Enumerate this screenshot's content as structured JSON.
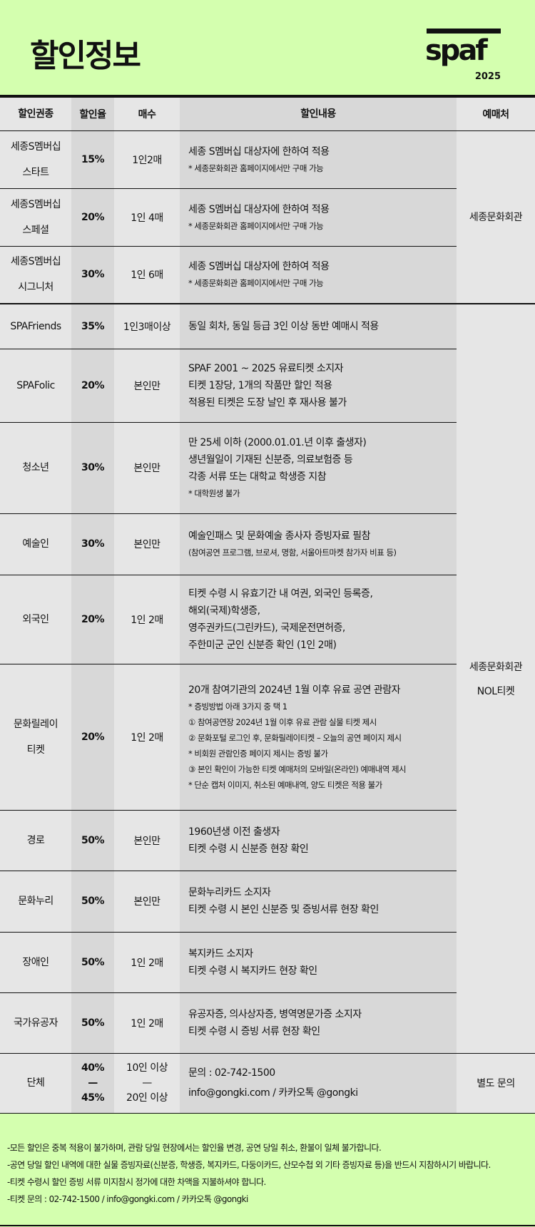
{
  "header": {
    "title": "할인정보",
    "logo_text": "spaf",
    "logo_year": "2025"
  },
  "colors": {
    "background": "#d4ffaf",
    "cell_light": "#e6e6e6",
    "cell_dark": "#d8d8d8",
    "border": "#111111"
  },
  "columns": [
    "할인권종",
    "할인율",
    "매수",
    "할인내용",
    "예매처"
  ],
  "section1_vendor": "세종문화회관",
  "section1": [
    {
      "type": [
        "세종S멤버십",
        "스타트"
      ],
      "rate": "15%",
      "qty": "1인2매",
      "lines": [
        "세종 S멤버십 대상자에 한하여 적용"
      ],
      "notes": [
        "* 세종문화회관 홈페이지에서만 구매 가능"
      ]
    },
    {
      "type": [
        "세종S멤버십",
        "스페셜"
      ],
      "rate": "20%",
      "qty": "1인 4매",
      "lines": [
        "세종 S멤버십 대상자에 한하여 적용"
      ],
      "notes": [
        "* 세종문화회관 홈페이지에서만 구매 가능"
      ]
    },
    {
      "type": [
        "세종S멤버십",
        "시그니처"
      ],
      "rate": "30%",
      "qty": "1인 6매",
      "lines": [
        "세종 S멤버십 대상자에 한하여 적용"
      ],
      "notes": [
        "* 세종문화회관 홈페이지에서만 구매 가능"
      ]
    }
  ],
  "section2_vendor": [
    "세종문화회관",
    "NOL티켓"
  ],
  "section2": [
    {
      "type": [
        "SPAFriends"
      ],
      "rate": "35%",
      "qty": "1인3매이상",
      "lines": [
        "동일 회차, 동일 등급 3인 이상 동반 예매시 적용"
      ],
      "notes": []
    },
    {
      "type": [
        "SPAFolic"
      ],
      "rate": "20%",
      "qty": "본인만",
      "lines": [
        "SPAF 2001 ~ 2025 유료티켓 소지자",
        "티켓 1장당, 1개의 작품만 할인 적용",
        "적용된 티켓은 도장 날인 후 재사용 불가"
      ],
      "notes": []
    },
    {
      "type": [
        "청소년"
      ],
      "rate": "30%",
      "qty": "본인만",
      "lines": [
        "만 25세 이하 (2000.01.01.년 이후 출생자)",
        "생년월일이 기재된 신분증, 의료보험증 등",
        "각종 서류 또는 대학교 학생증 지참"
      ],
      "notes": [
        "* 대학원생 불가"
      ]
    },
    {
      "type": [
        "예술인"
      ],
      "rate": "30%",
      "qty": "본인만",
      "lines": [
        "예술인패스 및 문화예술 종사자 증빙자료 필참"
      ],
      "notes": [
        "(참여공연 프로그램, 브로셔, 명함, 서울아트마켓 참가자 비표 등)"
      ]
    },
    {
      "type": [
        "외국인"
      ],
      "rate": "20%",
      "qty": "1인 2매",
      "lines": [
        "티켓 수령 시 유효기간 내 여권, 외국인 등록증,",
        "해외(국제)학생증,",
        "영주권카드(그린카드), 국제운전면허증,",
        "주한미군 군인 신분증 확인 (1인 2매)"
      ],
      "notes": []
    },
    {
      "type": [
        "문화릴레이",
        "티켓"
      ],
      "rate": "20%",
      "qty": "1인 2매",
      "lines": [
        "20개 참여기관의 2024년 1월 이후 유료 공연 관람자"
      ],
      "notes": [
        "* 증빙방법 아래 3가지 중 택 1",
        "① 참여공연장 2024년 1월 이후 유료 관람 실물 티켓 제시",
        "② 문화포털 로그인 후, 문화릴레이티켓 – 오늘의 공연 페이지 제시",
        "* 비회원 관람인증 페이지 제시는 증빙 불가",
        "③ 본인 확인이 가능한 티켓 예매처의 모바일(온라인) 예매내역 제시",
        "* 단순 캡처 이미지, 취소된 예매내역, 양도 티켓은 적용 불가"
      ]
    },
    {
      "type": [
        "경로"
      ],
      "rate": "50%",
      "qty": "본인만",
      "lines": [
        "1960년생 이전 출생자",
        "티켓 수령 시 신분증 현장 확인"
      ],
      "notes": []
    },
    {
      "type": [
        "문화누리"
      ],
      "rate": "50%",
      "qty": "본인만",
      "lines": [
        "문화누리카드 소지자",
        "티켓 수령 시 본인 신분증 및 증빙서류 현장 확인"
      ],
      "notes": []
    },
    {
      "type": [
        "장애인"
      ],
      "rate": "50%",
      "qty": "1인 2매",
      "lines": [
        "복지카드 소지자",
        "티켓 수령 시 복지카드 현장 확인"
      ],
      "notes": []
    },
    {
      "type": [
        "국가유공자"
      ],
      "rate": "50%",
      "qty": "1인 2매",
      "lines": [
        "유공자증, 의사상자증, 병역명문가증 소지자",
        "티켓 수령 시 증빙 서류 현장 확인"
      ],
      "notes": []
    }
  ],
  "group": {
    "type": "단체",
    "rate": [
      "40%",
      "—",
      "45%"
    ],
    "qty": [
      "10인 이상",
      "—",
      "20인 이상"
    ],
    "lines": [
      "문의 : 02-742-1500",
      "info@gongki.com / 카카오톡 @gongki"
    ],
    "vendor": "별도 문의"
  },
  "footer": [
    "-모든 할인은 중복 적용이 불가하며, 관람 당일 현장에서는 할인율 변경, 공연 당일 취소, 환불이 일체 불가합니다.",
    "-공연 당일 할인 내역에 대한 실물 증빙자료(신분증, 학생증, 복지카드, 다둥이카드, 산모수첩 외 기타 증빙자료 등)을 반드시 지참하시기 바랍니다.",
    "-티켓 수령시 할인 증빙 서류 미지참시 정가에 대한 차액을 지불하셔야 합니다.",
    "-티켓 문의 : 02-742-1500 / info@gongki.com / 카카오톡 @gongki"
  ]
}
